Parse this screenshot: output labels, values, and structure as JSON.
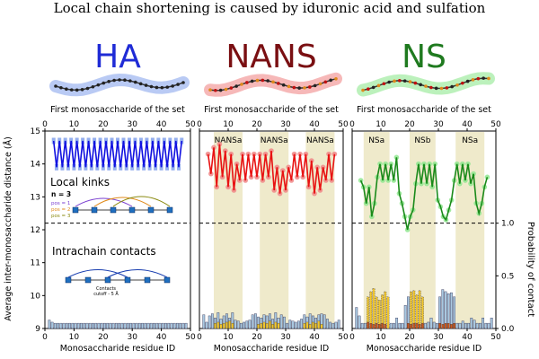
{
  "title": "Local chain shortening is caused by iduronic acid and sulfation",
  "colors": {
    "HA": "#1f2bd6",
    "NANS": "#7a0f12",
    "NS": "#1f7a1f",
    "HA_line": "#1010e0",
    "HA_fill": "#8aa6ec",
    "NANS_line": "#e81212",
    "NANS_fill": "#f08888",
    "NS_line": "#1a8a1a",
    "NS_fill": "#90e890",
    "bar_light": "#a9c8e0",
    "bar_yellow": "#f1c72e",
    "bar_orange": "#c9571f",
    "shade": "#efeacb"
  },
  "ylabel_left": "Average inter-monosaccharide distance (Å)",
  "ylabel_right": "Probability of contact",
  "xlabel_top": "First monosaccharide of the set",
  "xlabel_bottom": "Monosaccharide residue ID",
  "annotations": {
    "local_kinks": "Local kinks",
    "n_label": "n = 3",
    "pos1": "pos = 1",
    "pos2": "pos = 2",
    "pos3": "pos = 3",
    "intrachain": "Intrachain contacts",
    "contacts_line1": "Contacts",
    "contacts_line2": "cutoff - 5 Å"
  },
  "chart_data": [
    {
      "type": "line",
      "name": "HA",
      "xlim": [
        0,
        50
      ],
      "ylim": [
        9,
        15
      ],
      "xticks": [
        0,
        10,
        20,
        30,
        40,
        50
      ],
      "yticks": [
        9,
        10,
        11,
        12,
        13,
        14,
        15
      ],
      "threshold_distance": 12.2,
      "series_distance": [
        14.7,
        13.9,
        14.7,
        13.9,
        14.7,
        13.9,
        14.7,
        13.9,
        14.7,
        13.9,
        14.7,
        13.9,
        14.7,
        13.9,
        14.7,
        13.9,
        14.7,
        13.9,
        14.7,
        13.9,
        14.7,
        13.9,
        14.7,
        13.9,
        14.7,
        13.9,
        14.7,
        13.9,
        14.7,
        13.9,
        14.7,
        13.9,
        14.7,
        13.9,
        14.7,
        13.9,
        14.7,
        13.9,
        14.7,
        13.9,
        14.7,
        13.9,
        14.7,
        13.9,
        14.7
      ],
      "contact_probability": [
        0.08,
        0.06,
        0.05,
        0.05,
        0.05,
        0.05,
        0.05,
        0.05,
        0.05,
        0.05,
        0.05,
        0.05,
        0.05,
        0.05,
        0.05,
        0.05,
        0.05,
        0.05,
        0.05,
        0.05,
        0.05,
        0.05,
        0.05,
        0.05,
        0.05,
        0.05,
        0.05,
        0.05,
        0.05,
        0.05,
        0.05,
        0.05,
        0.05,
        0.05,
        0.05,
        0.05,
        0.05,
        0.05,
        0.05,
        0.05,
        0.05,
        0.05,
        0.05,
        0.05,
        0.05,
        0.05,
        0.05,
        0.05
      ],
      "contact_probability_secondary": [],
      "domains": [],
      "domain_labels": []
    },
    {
      "type": "line",
      "name": "NANS",
      "xlim": [
        0,
        50
      ],
      "ylim": [
        9,
        15
      ],
      "xticks": [
        0,
        10,
        20,
        30,
        40,
        50
      ],
      "yticks": [
        9,
        10,
        11,
        12,
        13,
        14,
        15
      ],
      "threshold_distance": 12.2,
      "series_distance": [
        14.3,
        13.7,
        14.5,
        13.3,
        14.6,
        13.6,
        14.4,
        13.3,
        14.3,
        13.2,
        14.0,
        13.5,
        14.3,
        13.5,
        14.3,
        13.6,
        14.3,
        13.6,
        14.3,
        13.5,
        14.3,
        13.6,
        14.4,
        13.2,
        13.9,
        13.1,
        13.8,
        13.2,
        13.9,
        13.5,
        14.3,
        13.6,
        14.3,
        13.6,
        14.3,
        13.3,
        14.1,
        13.1,
        13.9,
        13.2,
        13.9,
        13.5,
        14.3,
        13.5,
        14.3
      ],
      "contact_probability": [
        0.13,
        0.06,
        0.12,
        0.14,
        0.1,
        0.15,
        0.09,
        0.12,
        0.14,
        0.1,
        0.15,
        0.08,
        0.07,
        0.05,
        0.06,
        0.07,
        0.08,
        0.13,
        0.14,
        0.11,
        0.1,
        0.13,
        0.12,
        0.14,
        0.09,
        0.15,
        0.1,
        0.13,
        0.11,
        0.05,
        0.08,
        0.07,
        0.06,
        0.07,
        0.09,
        0.13,
        0.11,
        0.14,
        0.12,
        0.1,
        0.13,
        0.14,
        0.13,
        0.09,
        0.06,
        0.05,
        0.06,
        0.08
      ],
      "contact_probability_secondary": [
        0,
        0,
        0,
        0,
        0.05,
        0.06,
        0.04,
        0.05,
        0.06,
        0.07,
        0.05,
        0,
        0,
        0,
        0,
        0,
        0,
        0,
        0,
        0.04,
        0.05,
        0.06,
        0.05,
        0.07,
        0.04,
        0.06,
        0.05,
        0,
        0,
        0,
        0,
        0,
        0,
        0,
        0,
        0.05,
        0.06,
        0.04,
        0.06,
        0.05,
        0.07,
        0.04,
        0,
        0,
        0,
        0,
        0,
        0
      ],
      "domains": [
        [
          5,
          15
        ],
        [
          21,
          31
        ],
        [
          37,
          47
        ]
      ],
      "domain_labels": [
        "NANSa",
        "NANSa",
        "NANSa"
      ]
    },
    {
      "type": "line",
      "name": "NS",
      "xlim": [
        0,
        50
      ],
      "ylim": [
        9,
        15
      ],
      "xticks": [
        0,
        10,
        20,
        30,
        40,
        50
      ],
      "yticks": [
        9,
        10,
        11,
        12,
        13,
        14,
        15
      ],
      "threshold_distance": 12.2,
      "series_distance": [
        13.5,
        13.3,
        12.8,
        13.3,
        12.4,
        12.8,
        13.6,
        14.0,
        13.5,
        14.0,
        13.5,
        14.0,
        13.5,
        14.2,
        13.1,
        12.8,
        12.4,
        12.0,
        12.4,
        12.6,
        13.4,
        14.0,
        13.4,
        14.0,
        13.4,
        14.0,
        13.3,
        14.0,
        12.9,
        12.7,
        12.4,
        12.3,
        12.6,
        12.9,
        13.5,
        14.0,
        13.4,
        14.0,
        13.5,
        14.0,
        13.4,
        13.7,
        12.8,
        12.5,
        12.8,
        13.3,
        13.6
      ],
      "contact_probability": [
        0.2,
        0.12,
        0.05,
        0.05,
        0.3,
        0.35,
        0.38,
        0.3,
        0.27,
        0.32,
        0.35,
        0.3,
        0.05,
        0.05,
        0.1,
        0.05,
        0.05,
        0.22,
        0.3,
        0.35,
        0.36,
        0.32,
        0.36,
        0.3,
        0.05,
        0.06,
        0.1,
        0.06,
        0.05,
        0.3,
        0.37,
        0.35,
        0.33,
        0.34,
        0.3,
        0.05,
        0.05,
        0.07,
        0.05,
        0.05,
        0.1,
        0.08,
        0.05,
        0.05,
        0.1,
        0.05,
        0.05,
        0.1
      ],
      "contact_probability_secondary": [
        0,
        0,
        0,
        0,
        0.06,
        0.05,
        0.04,
        0.05,
        0.04,
        0.05,
        0.04,
        0,
        0,
        0,
        0,
        0,
        0,
        0,
        0.05,
        0.04,
        0.05,
        0.05,
        0.04,
        0.05,
        0,
        0,
        0,
        0,
        0,
        0.05,
        0.04,
        0.05,
        0.05,
        0.04,
        0.05,
        0,
        0,
        0,
        0,
        0,
        0,
        0,
        0,
        0,
        0,
        0,
        0,
        0
      ],
      "domains": [
        [
          4,
          13
        ],
        [
          20,
          29
        ],
        [
          36,
          46
        ]
      ],
      "domain_labels": [
        "NSa",
        "NSb",
        "NSa"
      ]
    }
  ]
}
